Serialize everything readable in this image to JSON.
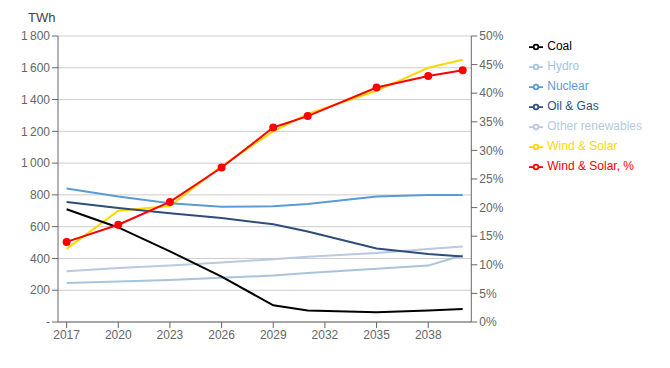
{
  "chart_data": {
    "type": "line",
    "ylabel": "TWh",
    "x": [
      2017,
      2020,
      2023,
      2026,
      2029,
      2031,
      2035,
      2038,
      2040
    ],
    "xlim": [
      2016.5,
      2040.5
    ],
    "xticks": [
      2017,
      2020,
      2023,
      2026,
      2029,
      2032,
      2035,
      2038
    ],
    "ylim": [
      0,
      1800
    ],
    "yticks": [
      {
        "value": 0,
        "label": "-"
      },
      200,
      400,
      600,
      800,
      {
        "value": 1000,
        "label": "1 000"
      },
      {
        "value": 1200,
        "label": "1 200"
      },
      {
        "value": 1400,
        "label": "1 400"
      },
      {
        "value": 1600,
        "label": "1 600"
      },
      {
        "value": 1800,
        "label": "1 800"
      }
    ],
    "y2lim": [
      0,
      50
    ],
    "y2ticks": [
      {
        "value": 0,
        "label": "0%"
      },
      {
        "value": 5,
        "label": "5%"
      },
      {
        "value": 10,
        "label": "10%"
      },
      {
        "value": 15,
        "label": "15%"
      },
      {
        "value": 20,
        "label": "20%"
      },
      {
        "value": 25,
        "label": "25%"
      },
      {
        "value": 30,
        "label": "30%"
      },
      {
        "value": 35,
        "label": "35%"
      },
      {
        "value": 40,
        "label": "40%"
      },
      {
        "value": 45,
        "label": "45%"
      },
      {
        "value": 50,
        "label": "50%"
      }
    ],
    "grid": true,
    "legend": "right",
    "series": [
      {
        "name": "Wind & Solar",
        "color": "#FFD700",
        "values": [
          460,
          700,
          730,
          980,
          1200,
          1310,
          1455,
          1600,
          1650
        ]
      },
      {
        "name": "Other renewables",
        "color": "#B8C9E1",
        "values": [
          320,
          340,
          355,
          375,
          395,
          410,
          435,
          460,
          475
        ]
      },
      {
        "name": "Hydro",
        "color": "#A8C4DC",
        "values": [
          245,
          255,
          265,
          278,
          292,
          308,
          335,
          355,
          420
        ]
      },
      {
        "name": "Nuclear",
        "color": "#5B9BD5",
        "values": [
          840,
          790,
          748,
          725,
          728,
          742,
          790,
          800,
          800
        ]
      },
      {
        "name": "Oil & Gas",
        "color": "#2E4D7B",
        "values": [
          755,
          718,
          685,
          655,
          615,
          570,
          462,
          428,
          412
        ]
      },
      {
        "name": "Coal",
        "color": "#000000",
        "values": [
          710,
          595,
          445,
          285,
          105,
          72,
          62,
          72,
          82
        ]
      },
      {
        "name": "Wind & Solar, %",
        "color": "#FF0000",
        "axis": "y2",
        "marker": "circle",
        "values": [
          14,
          17,
          21,
          27,
          34,
          36,
          41,
          43,
          44
        ]
      }
    ]
  }
}
